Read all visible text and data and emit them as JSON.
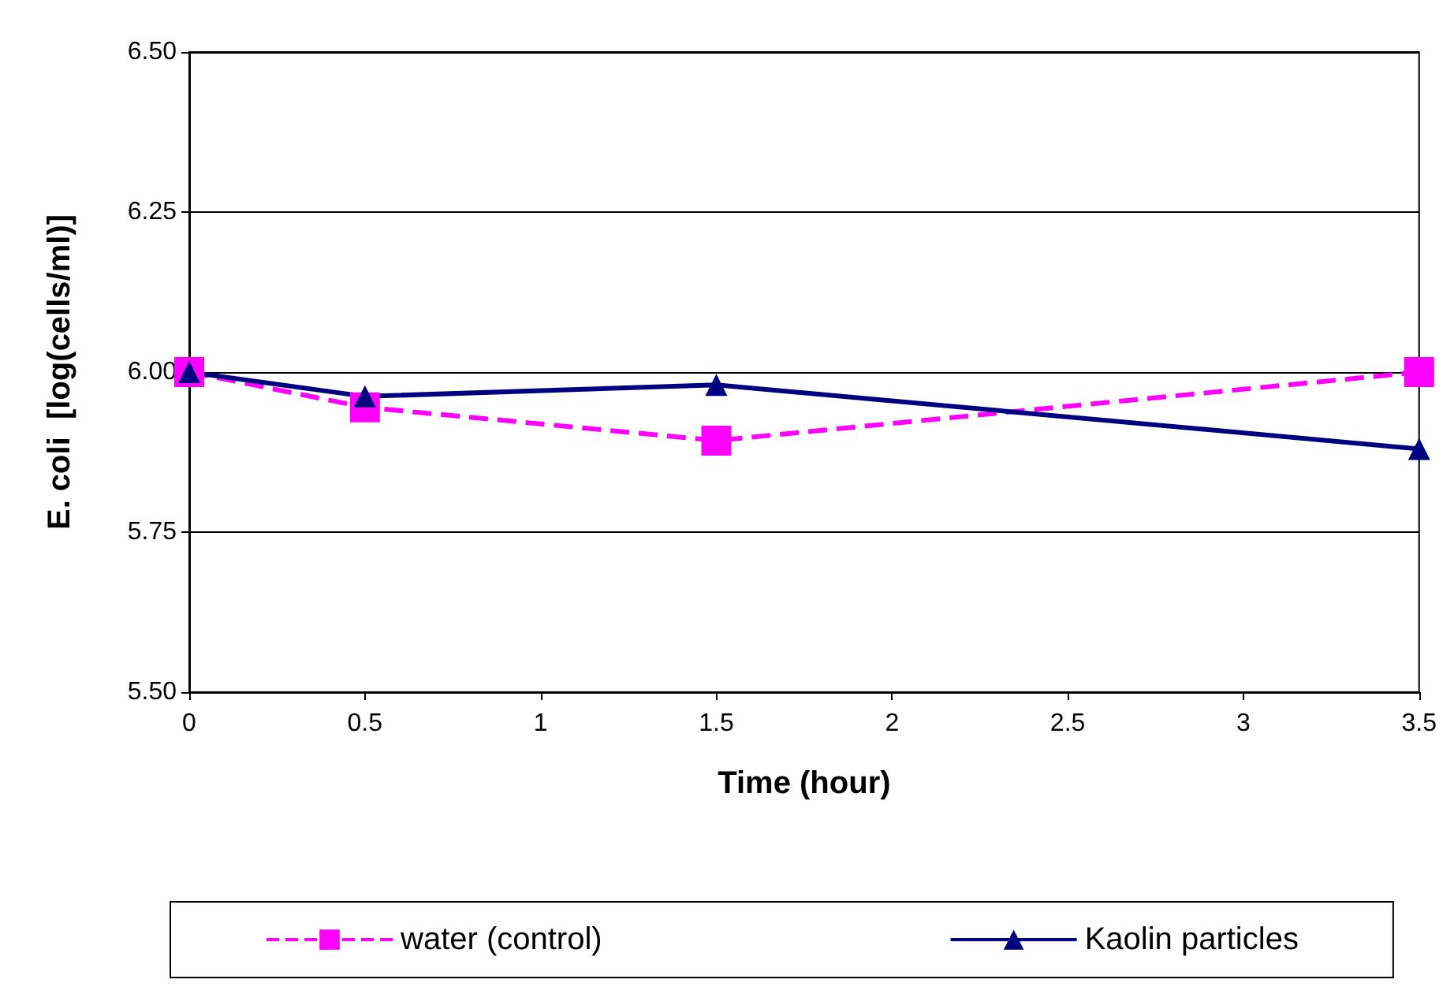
{
  "chart_data": {
    "type": "line",
    "xlabel": "Time (hour)",
    "ylabel": "E. coli  [log(cells/ml)]",
    "x": [
      0,
      0.5,
      1.5,
      3.5
    ],
    "series": [
      {
        "name": "water (control)",
        "color": "#ff00ff",
        "values": [
          6.0,
          5.945,
          5.893,
          6.0
        ],
        "marker": "square",
        "line_style": "dashed"
      },
      {
        "name": "Kaolin particles",
        "color": "#000080",
        "values": [
          6.0,
          5.962,
          5.98,
          5.88
        ],
        "marker": "triangle",
        "line_style": "solid"
      }
    ],
    "xlim": [
      0,
      3.5
    ],
    "xticks": [
      0,
      0.5,
      1,
      1.5,
      2,
      2.5,
      3,
      3.5
    ],
    "ylim": [
      5.5,
      6.5
    ],
    "yticks": [
      {
        "value": 5.5,
        "label": "5.50"
      },
      {
        "value": 5.75,
        "label": "5.75"
      },
      {
        "value": 6.0,
        "label": "6.00"
      },
      {
        "value": 6.25,
        "label": "6.25"
      },
      {
        "value": 6.5,
        "label": "6.50"
      }
    ],
    "grid": "y",
    "legend": "bottom"
  }
}
